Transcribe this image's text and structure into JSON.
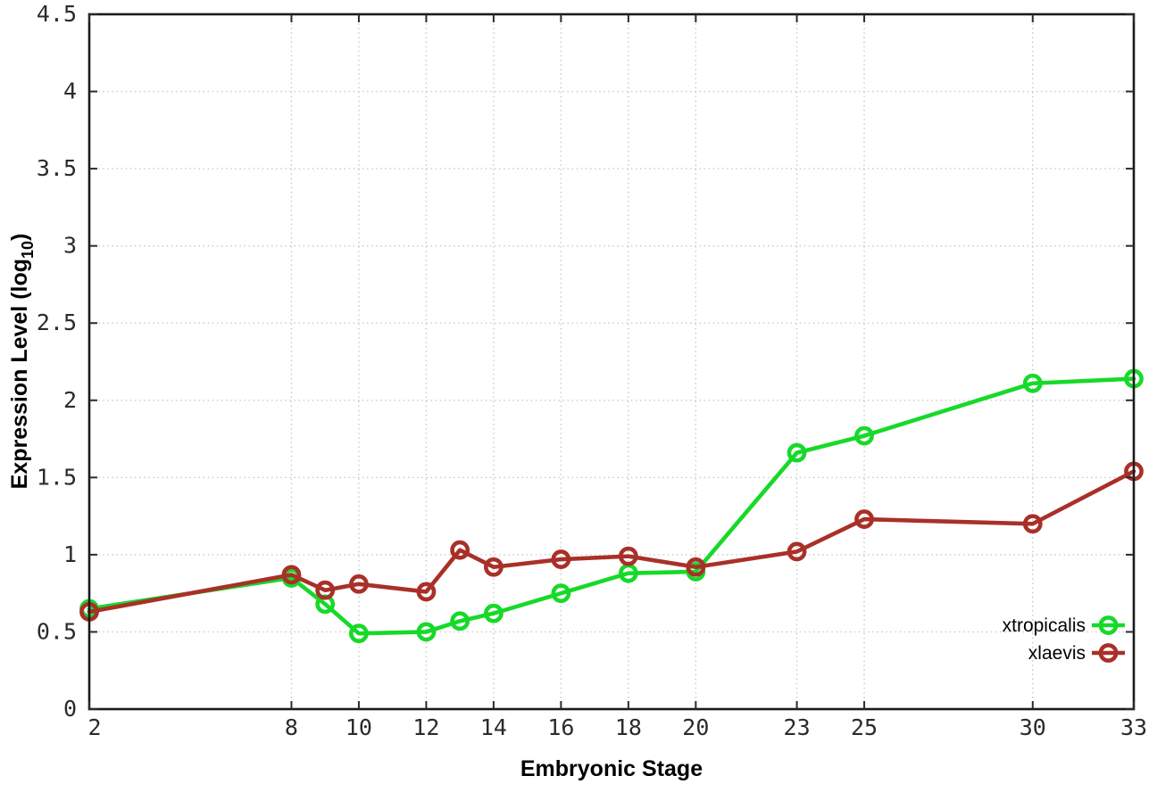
{
  "page": {
    "background_color": "#ffffff",
    "border_color": "#1a1a1a",
    "grid_color": "#c9c9c9",
    "tick_color": "#2b2b2b"
  },
  "chart_data": {
    "type": "line",
    "title": "",
    "xlabel": "Embryonic Stage",
    "ylabel": {
      "main": "Expression Level (log",
      "sub": "10",
      "end": ")"
    },
    "xlim": [
      2,
      33
    ],
    "ylim": [
      0,
      4.5
    ],
    "grid": true,
    "legend_position": "inside-bottom-right",
    "x_ticks": [
      {
        "value": 2,
        "label": "2"
      },
      {
        "value": 8,
        "label": "8"
      },
      {
        "value": 10,
        "label": "10"
      },
      {
        "value": 12,
        "label": "12"
      },
      {
        "value": 14,
        "label": "14"
      },
      {
        "value": 16,
        "label": "16"
      },
      {
        "value": 18,
        "label": "18"
      },
      {
        "value": 20,
        "label": "20"
      },
      {
        "value": 23,
        "label": "23"
      },
      {
        "value": 25,
        "label": "25"
      },
      {
        "value": 30,
        "label": "30"
      },
      {
        "value": 33,
        "label": "33"
      }
    ],
    "y_ticks": [
      {
        "value": 0,
        "label": "0"
      },
      {
        "value": 0.5,
        "label": "0.5"
      },
      {
        "value": 1,
        "label": "1"
      },
      {
        "value": 1.5,
        "label": "1.5"
      },
      {
        "value": 2,
        "label": "2"
      },
      {
        "value": 2.5,
        "label": "2.5"
      },
      {
        "value": 3,
        "label": "3"
      },
      {
        "value": 3.5,
        "label": "3.5"
      },
      {
        "value": 4,
        "label": "4"
      },
      {
        "value": 4.5,
        "label": "4.5"
      }
    ],
    "x": [
      2,
      8,
      9,
      10,
      12,
      13,
      14,
      16,
      18,
      20,
      23,
      25,
      30,
      33
    ],
    "series": [
      {
        "name": "xtropicalis",
        "color": "#17d929",
        "values": [
          0.65,
          0.85,
          0.68,
          0.49,
          0.5,
          0.57,
          0.62,
          0.75,
          0.88,
          0.89,
          1.66,
          1.77,
          2.11,
          2.14
        ]
      },
      {
        "name": "xlaevis",
        "color": "#a93028",
        "values": [
          0.63,
          0.87,
          0.77,
          0.81,
          0.76,
          1.03,
          0.92,
          0.97,
          0.99,
          0.92,
          1.02,
          1.23,
          1.2,
          1.54
        ]
      }
    ]
  }
}
